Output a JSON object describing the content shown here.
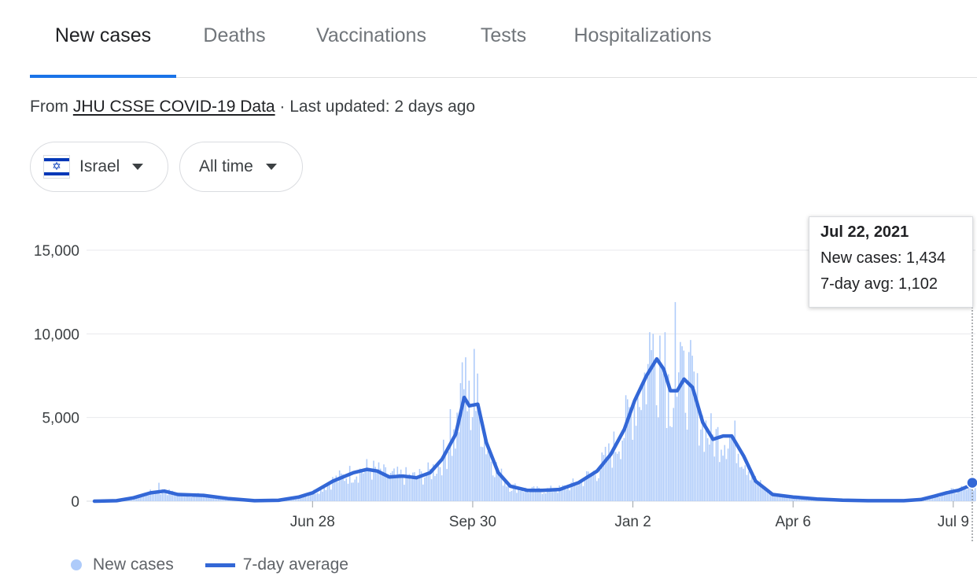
{
  "tabs": [
    {
      "label": "New cases",
      "active": true
    },
    {
      "label": "Deaths",
      "active": false
    },
    {
      "label": "Vaccinations",
      "active": false
    },
    {
      "label": "Tests",
      "active": false
    },
    {
      "label": "Hospitalizations",
      "active": false
    }
  ],
  "source": {
    "prefix": "From",
    "link": "JHU CSSE COVID-19 Data",
    "suffix": " · Last updated: 2 days ago"
  },
  "filters": {
    "country": "Israel",
    "range": "All time",
    "icons": {
      "country": "israel-flag-icon",
      "dropdown": "caret-down-icon"
    }
  },
  "tooltip": {
    "date": "Jul 22, 2021",
    "new_cases": "New cases: 1,434",
    "avg": "7-day avg: 1,102"
  },
  "legend": {
    "bars": "New cases",
    "line": "7-day average"
  },
  "colors": {
    "bars": "#aecbfa",
    "line": "#3367d6",
    "accent": "#1a73e8",
    "grid": "#e8eaed"
  },
  "chart_data": {
    "type": "bar",
    "x_unit": "date",
    "y_ticks": [
      "15,000",
      "10,000",
      "5,000",
      "0"
    ],
    "y_tick_values": [
      15000,
      10000,
      5000,
      0
    ],
    "x_ticks": [
      "Jun 28",
      "Sep 30",
      "Jan 2",
      "Apr 6",
      "Jul 9"
    ],
    "x_tick_dates": [
      "2020-06-28",
      "2020-09-30",
      "2021-01-02",
      "2021-04-06",
      "2021-07-09"
    ],
    "x_range": [
      "2020-02-21",
      "2021-07-22"
    ],
    "ylim": [
      0,
      15000
    ],
    "grid": true,
    "legend_position": "bottom-left",
    "highlight": {
      "date": "2021-07-22",
      "new_cases": 1434,
      "avg": 1102
    },
    "series": [
      {
        "name": "7-day average",
        "kind": "line",
        "points": [
          [
            "2020-02-21",
            0
          ],
          [
            "2020-03-05",
            30
          ],
          [
            "2020-03-15",
            200
          ],
          [
            "2020-03-25",
            500
          ],
          [
            "2020-04-02",
            600
          ],
          [
            "2020-04-10",
            400
          ],
          [
            "2020-04-25",
            350
          ],
          [
            "2020-05-10",
            150
          ],
          [
            "2020-05-25",
            30
          ],
          [
            "2020-06-08",
            50
          ],
          [
            "2020-06-20",
            250
          ],
          [
            "2020-06-28",
            500
          ],
          [
            "2020-07-10",
            1200
          ],
          [
            "2020-07-22",
            1700
          ],
          [
            "2020-07-30",
            1900
          ],
          [
            "2020-08-05",
            1800
          ],
          [
            "2020-08-12",
            1450
          ],
          [
            "2020-08-20",
            1500
          ],
          [
            "2020-08-28",
            1400
          ],
          [
            "2020-09-05",
            1700
          ],
          [
            "2020-09-12",
            2500
          ],
          [
            "2020-09-20",
            4000
          ],
          [
            "2020-09-25",
            6200
          ],
          [
            "2020-09-28",
            5700
          ],
          [
            "2020-10-03",
            5800
          ],
          [
            "2020-10-08",
            3500
          ],
          [
            "2020-10-15",
            1700
          ],
          [
            "2020-10-22",
            900
          ],
          [
            "2020-11-01",
            650
          ],
          [
            "2020-11-10",
            650
          ],
          [
            "2020-11-20",
            700
          ],
          [
            "2020-12-01",
            1100
          ],
          [
            "2020-12-12",
            1800
          ],
          [
            "2020-12-20",
            2800
          ],
          [
            "2020-12-28",
            4300
          ],
          [
            "2021-01-03",
            6000
          ],
          [
            "2021-01-10",
            7500
          ],
          [
            "2021-01-16",
            8500
          ],
          [
            "2021-01-20",
            7900
          ],
          [
            "2021-01-24",
            6600
          ],
          [
            "2021-01-28",
            6600
          ],
          [
            "2021-02-01",
            7300
          ],
          [
            "2021-02-06",
            6800
          ],
          [
            "2021-02-12",
            4700
          ],
          [
            "2021-02-18",
            3700
          ],
          [
            "2021-02-24",
            3900
          ],
          [
            "2021-03-01",
            3900
          ],
          [
            "2021-03-08",
            2700
          ],
          [
            "2021-03-15",
            1200
          ],
          [
            "2021-03-25",
            400
          ],
          [
            "2021-04-06",
            250
          ],
          [
            "2021-04-20",
            130
          ],
          [
            "2021-05-05",
            60
          ],
          [
            "2021-05-20",
            30
          ],
          [
            "2021-06-10",
            30
          ],
          [
            "2021-06-20",
            100
          ],
          [
            "2021-06-28",
            300
          ],
          [
            "2021-07-05",
            500
          ],
          [
            "2021-07-12",
            650
          ],
          [
            "2021-07-18",
            900
          ],
          [
            "2021-07-22",
            1102
          ]
        ]
      },
      {
        "name": "New cases",
        "kind": "bar",
        "spikes": [
          [
            "2020-03-30",
            1100
          ],
          [
            "2020-09-17",
            5500
          ],
          [
            "2020-09-24",
            8300
          ],
          [
            "2020-09-26",
            8600
          ],
          [
            "2020-10-01",
            9100
          ],
          [
            "2021-01-12",
            10100
          ],
          [
            "2021-01-14",
            10000
          ],
          [
            "2021-01-18",
            9900
          ],
          [
            "2021-01-21",
            10100
          ],
          [
            "2021-01-27",
            11900
          ],
          [
            "2021-02-01",
            9000
          ]
        ]
      }
    ]
  }
}
